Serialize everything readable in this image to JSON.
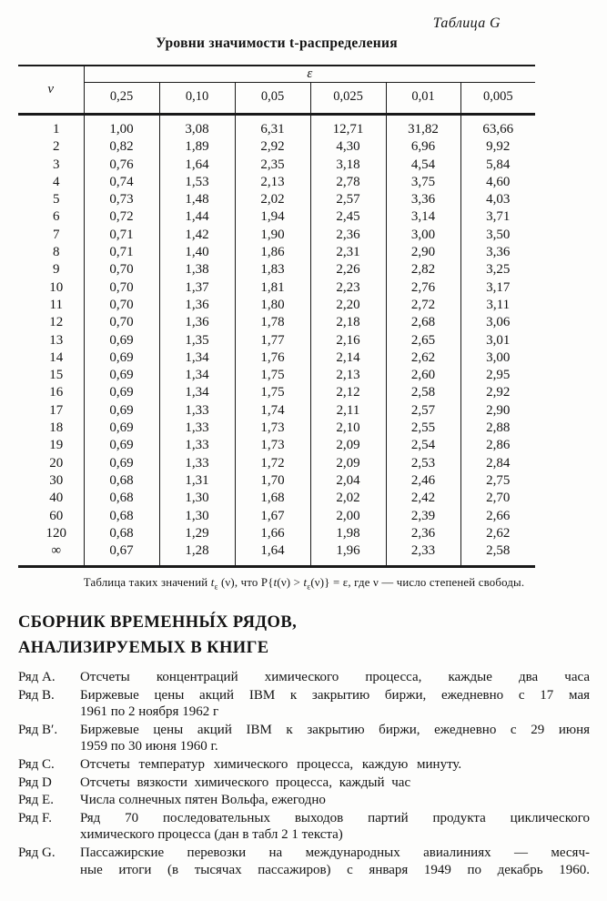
{
  "page": {
    "corner_label": "Таблица G",
    "title": "Уровни значимости t-распределения"
  },
  "table": {
    "nu_header": "ν",
    "epsilon_header": "ε",
    "col_headers": [
      "0,25",
      "0,10",
      "0,05",
      "0,025",
      "0,01",
      "0,005"
    ],
    "rows": [
      [
        "1",
        "1,00",
        "3,08",
        "6,31",
        "12,71",
        "31,82",
        "63,66"
      ],
      [
        "2",
        "0,82",
        "1,89",
        "2,92",
        "4,30",
        "6,96",
        "9,92"
      ],
      [
        "3",
        "0,76",
        "1,64",
        "2,35",
        "3,18",
        "4,54",
        "5,84"
      ],
      [
        "4",
        "0,74",
        "1,53",
        "2,13",
        "2,78",
        "3,75",
        "4,60"
      ],
      [
        "5",
        "0,73",
        "1,48",
        "2,02",
        "2,57",
        "3,36",
        "4,03"
      ],
      [
        "6",
        "0,72",
        "1,44",
        "1,94",
        "2,45",
        "3,14",
        "3,71"
      ],
      [
        "7",
        "0,71",
        "1,42",
        "1,90",
        "2,36",
        "3,00",
        "3,50"
      ],
      [
        "8",
        "0,71",
        "1,40",
        "1,86",
        "2,31",
        "2,90",
        "3,36"
      ],
      [
        "9",
        "0,70",
        "1,38",
        "1,83",
        "2,26",
        "2,82",
        "3,25"
      ],
      [
        "10",
        "0,70",
        "1,37",
        "1,81",
        "2,23",
        "2,76",
        "3,17"
      ],
      [
        "11",
        "0,70",
        "1,36",
        "1,80",
        "2,20",
        "2,72",
        "3,11"
      ],
      [
        "12",
        "0,70",
        "1,36",
        "1,78",
        "2,18",
        "2,68",
        "3,06"
      ],
      [
        "13",
        "0,69",
        "1,35",
        "1,77",
        "2,16",
        "2,65",
        "3,01"
      ],
      [
        "14",
        "0,69",
        "1,34",
        "1,76",
        "2,14",
        "2,62",
        "3,00"
      ],
      [
        "15",
        "0,69",
        "1,34",
        "1,75",
        "2,13",
        "2,60",
        "2,95"
      ],
      [
        "16",
        "0,69",
        "1,34",
        "1,75",
        "2,12",
        "2,58",
        "2,92"
      ],
      [
        "17",
        "0,69",
        "1,33",
        "1,74",
        "2,11",
        "2,57",
        "2,90"
      ],
      [
        "18",
        "0,69",
        "1,33",
        "1,73",
        "2,10",
        "2,55",
        "2,88"
      ],
      [
        "19",
        "0,69",
        "1,33",
        "1,73",
        "2,09",
        "2,54",
        "2,86"
      ],
      [
        "20",
        "0,69",
        "1,33",
        "1,72",
        "2,09",
        "2,53",
        "2,84"
      ],
      [
        "30",
        "0,68",
        "1,31",
        "1,70",
        "2,04",
        "2,46",
        "2,75"
      ],
      [
        "40",
        "0,68",
        "1,30",
        "1,68",
        "2,02",
        "2,42",
        "2,70"
      ],
      [
        "60",
        "0,68",
        "1,30",
        "1,67",
        "2,00",
        "2,39",
        "2,66"
      ],
      [
        "120",
        "0,68",
        "1,29",
        "1,66",
        "1,98",
        "2,36",
        "2,62"
      ],
      [
        "∞",
        "0,67",
        "1,28",
        "1,64",
        "1,96",
        "2,33",
        "2,58"
      ]
    ]
  },
  "footnote": {
    "parts": [
      "Таблица таких значений ",
      "t",
      "ε",
      " (ν), что P{",
      "t",
      "(ν) > ",
      "t",
      "ε",
      "(ν)} = ε, где ν — число степеней свободы."
    ]
  },
  "series": {
    "heading_line1": "СБОРНИК ВРЕМЕННЫ́Х РЯДОВ,",
    "heading_line2": "АНАЛИЗИРУЕМЫХ В КНИГЕ",
    "items": [
      {
        "label": "Ряд A.",
        "lines": [
          "Отсчеты концентраций химического процесса, каждые два часа"
        ]
      },
      {
        "label": "Ряд B.",
        "lines": [
          "Биржевые цены акций IBM к закрытию биржи, ежедневно с 17 мая",
          "1961 по 2 ноября 1962 г"
        ]
      },
      {
        "label": "Ряд B′.",
        "lines": [
          "Биржевые цены акций IBM к закрытию биржи, ежедневно с 29 июня",
          "1959 по 30 июня 1960 г."
        ]
      },
      {
        "label": "Ряд C.",
        "lines": [
          "Отсчеты температур химического процесса, каждую минуту."
        ]
      },
      {
        "label": "Ряд D",
        "lines": [
          "Отсчеты вязкости химического процесса, каждый час"
        ]
      },
      {
        "label": "Ряд E.",
        "lines": [
          "Числа солнечных пятен Вольфа, ежегодно"
        ]
      },
      {
        "label": "Ряд F.",
        "lines": [
          "Ряд 70 последовательных выходов партий продукта циклического",
          "химического процесса (дан в табл 2 1 текста)"
        ]
      },
      {
        "label": "Ряд G.",
        "lines": [
          "Пассажирские перевозки на международных авиалиниях — месяч-",
          "ные итоги (в тысячах пассажиров) с января 1949 по декабрь 1960."
        ]
      }
    ]
  }
}
